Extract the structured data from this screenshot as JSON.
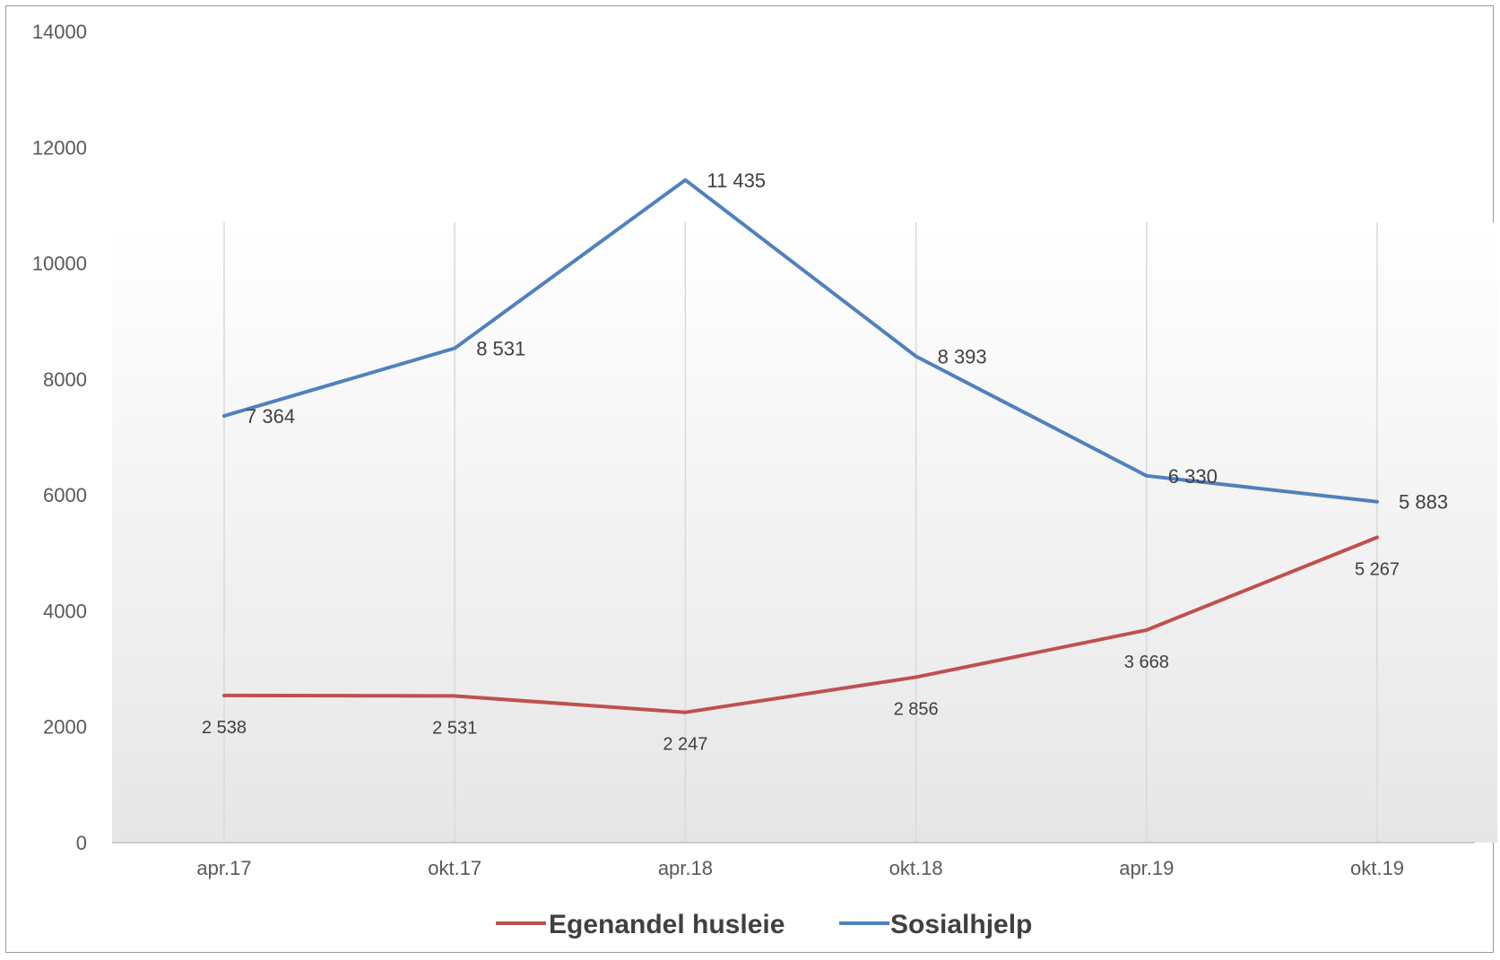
{
  "chart_data": {
    "type": "line",
    "x": [
      "apr.17",
      "okt.17",
      "apr.18",
      "okt.18",
      "apr.19",
      "okt.19"
    ],
    "ylim": [
      0,
      14000
    ],
    "yticks": [
      0,
      2000,
      4000,
      6000,
      8000,
      10000,
      12000,
      14000
    ],
    "ytick_labels": [
      "0",
      "2000",
      "4000",
      "6000",
      "8000",
      "10000",
      "12000",
      "14000"
    ],
    "grid": "vertical",
    "legend": "bottom",
    "series": [
      {
        "name": "Egenandel husleie",
        "color": "#c0504d",
        "values": [
          2538,
          2531,
          2247,
          2856,
          3668,
          5267
        ],
        "labels": [
          "2 538",
          "2 531",
          "2 247",
          "2 856",
          "3 668",
          "5 267"
        ]
      },
      {
        "name": "Sosialhjelp",
        "color": "#4f81bd",
        "values": [
          7364,
          8531,
          11435,
          8393,
          6330,
          5883
        ],
        "labels": [
          "7 364",
          "8 531",
          "11 435",
          "8 393",
          "6 330",
          "5 883"
        ]
      }
    ]
  }
}
